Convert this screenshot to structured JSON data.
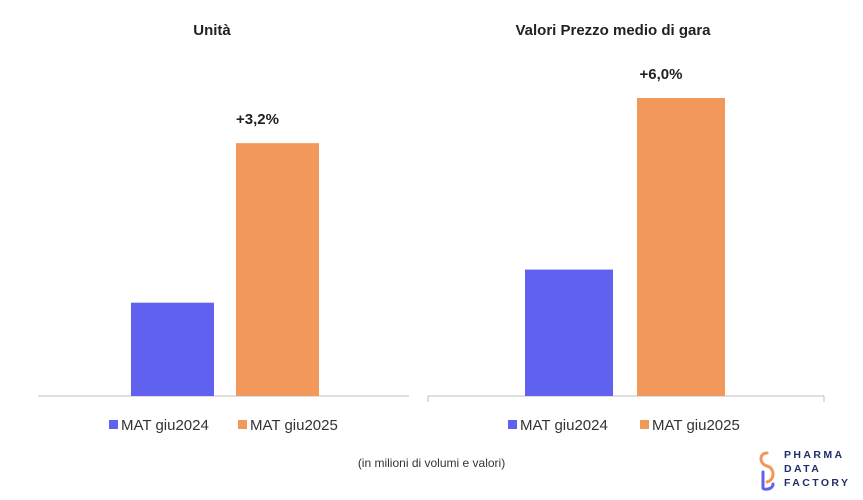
{
  "charts": [
    {
      "title": "Unità",
      "type": "bar",
      "series": [
        {
          "name": "MAT giu2024",
          "value": 31,
          "color": "#6161ef"
        },
        {
          "name": "MAT giu2025",
          "value": 84,
          "color": "#f2985a"
        }
      ],
      "delta_label": "+3,2%",
      "ylim": [
        0,
        100
      ]
    },
    {
      "title": "Valori Prezzo  medio di gara",
      "type": "bar",
      "series": [
        {
          "name": "MAT giu2024",
          "value": 42,
          "color": "#6161ef"
        },
        {
          "name": "MAT giu2025",
          "value": 99,
          "color": "#f2985a"
        }
      ],
      "delta_label": "+6,0%",
      "ylim": [
        0,
        100
      ]
    }
  ],
  "chart_data": [
    {
      "type": "bar",
      "title": "Unità",
      "categories": [
        "MAT giu2024",
        "MAT giu2025"
      ],
      "values": [
        31,
        84
      ],
      "annotation": "+3,2%",
      "ylim": [
        0,
        100
      ],
      "grid": false,
      "legend_position": "bottom"
    },
    {
      "type": "bar",
      "title": "Valori Prezzo  medio di gara",
      "categories": [
        "MAT giu2024",
        "MAT giu2025"
      ],
      "values": [
        42,
        99
      ],
      "annotation": "+6,0%",
      "ylim": [
        0,
        100
      ],
      "grid": false,
      "legend_position": "bottom"
    }
  ],
  "footnote": "(in milioni di volumi e valori)",
  "logo": {
    "line1": "PHARMA",
    "line2": "DATA",
    "line3": "FACTORY"
  }
}
